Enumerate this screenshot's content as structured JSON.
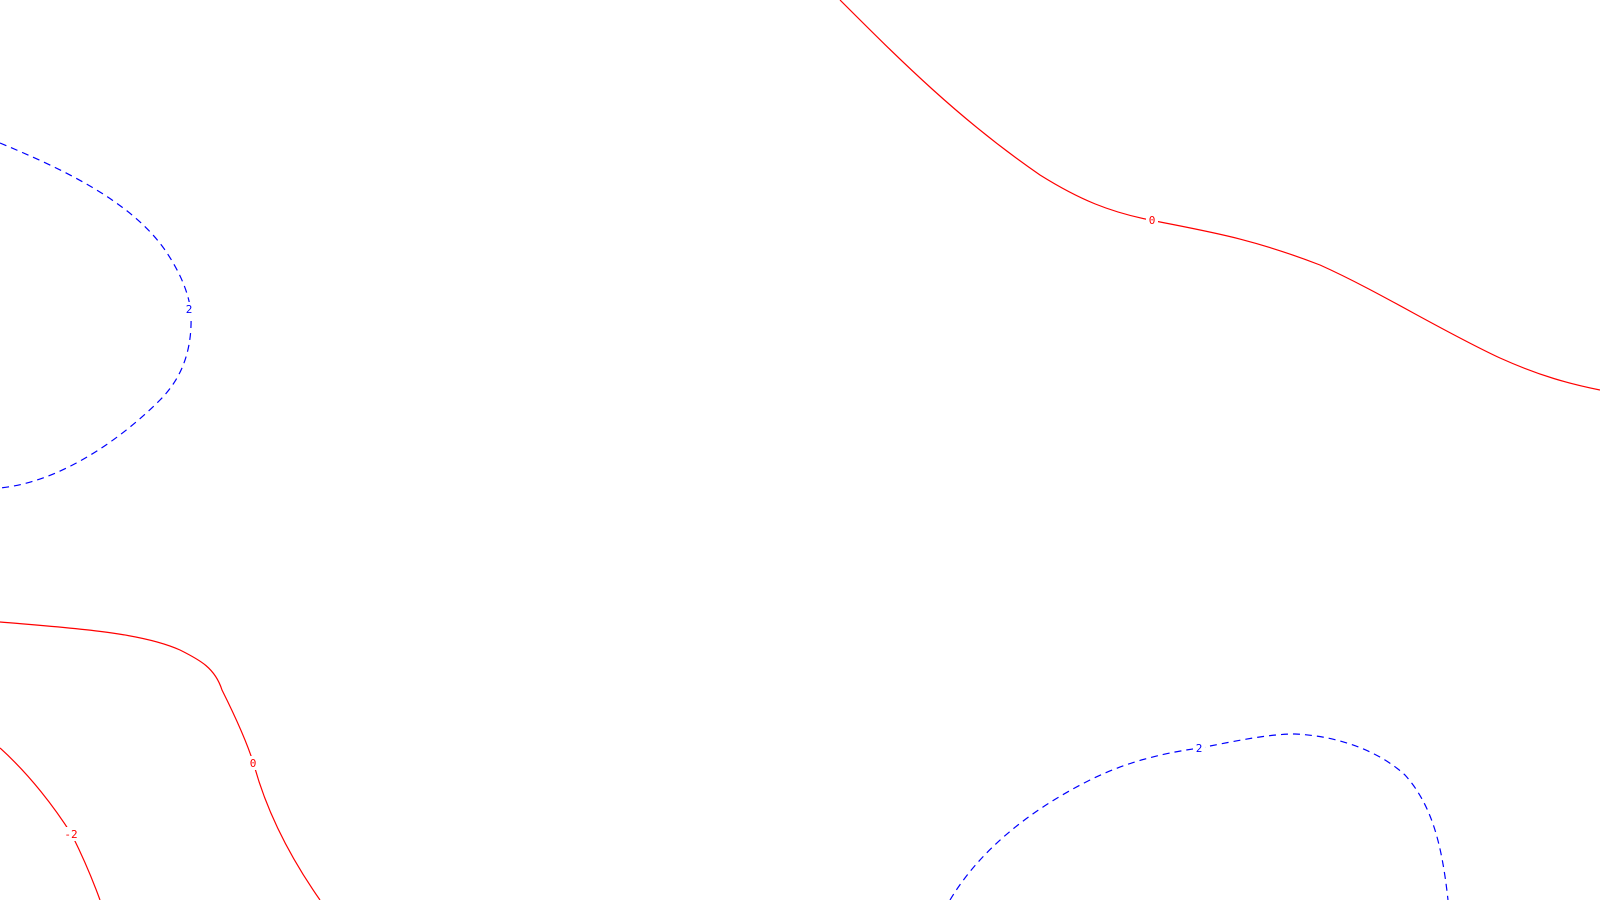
{
  "map": {
    "colors": {
      "background": "#ffffff",
      "negative_or_zero": "#ff0000",
      "positive": "#0000ff"
    },
    "contours": [
      {
        "id": "c-zero-top",
        "level": 0,
        "label": "0",
        "color": "#ff0000",
        "style": "solid"
      },
      {
        "id": "c-two-left",
        "level": 2,
        "label": "2",
        "color": "#0000ff",
        "style": "dashed"
      },
      {
        "id": "c-zero-bottom",
        "level": 0,
        "label": "0",
        "color": "#ff0000",
        "style": "solid"
      },
      {
        "id": "c-neg-two",
        "level": -2,
        "label": "-2",
        "color": "#ff0000",
        "style": "solid"
      },
      {
        "id": "c-two-right",
        "level": 2,
        "label": "2",
        "color": "#0000ff",
        "style": "dashed"
      }
    ]
  }
}
